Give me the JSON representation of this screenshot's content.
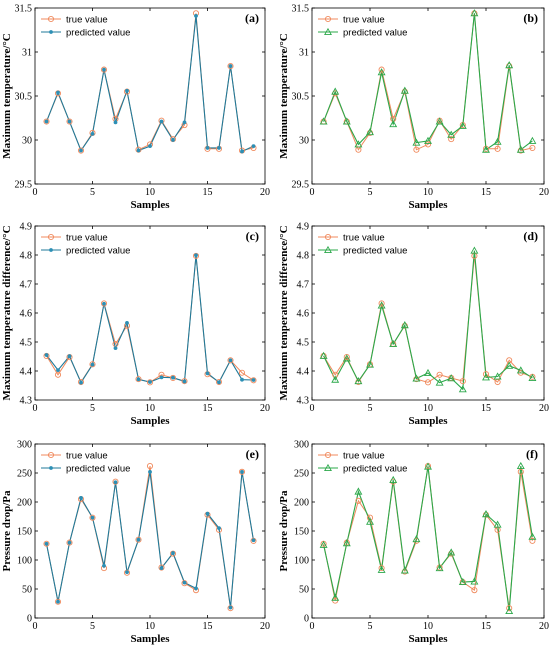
{
  "figure": {
    "colors": {
      "true": "#F08A5D",
      "pred_line": "#1F7A9A",
      "pred_marker": "#2C8FB5",
      "pred_compare": "#2BA84A"
    }
  },
  "chart_data": [
    {
      "type": "line",
      "panel_label": "(a)",
      "xlabel": "Samples",
      "ylabel": "Maximum temperature/°C",
      "xlim": [
        0,
        20
      ],
      "ylim": [
        29.5,
        31.5
      ],
      "xticks": [
        0,
        5,
        10,
        15,
        20
      ],
      "yticks": [
        29.5,
        30,
        30.5,
        31,
        31.5
      ],
      "ytick_labels": [
        "29.5",
        "30",
        "30.5",
        "31",
        "31.5"
      ],
      "x": [
        1,
        2,
        3,
        4,
        5,
        6,
        7,
        8,
        9,
        10,
        11,
        12,
        13,
        14,
        15,
        16,
        17,
        18,
        19
      ],
      "series": [
        {
          "name": "true value",
          "marker": "circle",
          "values": [
            30.21,
            30.53,
            30.21,
            29.88,
            30.08,
            30.8,
            30.24,
            30.55,
            29.89,
            29.95,
            30.22,
            30.01,
            30.17,
            31.44,
            29.9,
            29.9,
            30.84,
            29.88,
            29.91
          ]
        },
        {
          "name": "predicted value",
          "marker": "dot",
          "values": [
            30.21,
            30.54,
            30.21,
            29.88,
            30.07,
            30.8,
            30.2,
            30.56,
            29.88,
            29.93,
            30.21,
            30.0,
            30.2,
            31.41,
            29.91,
            29.91,
            30.84,
            29.87,
            29.93
          ]
        }
      ],
      "legend": "top-left"
    },
    {
      "type": "line",
      "panel_label": "(b)",
      "xlabel": "Samples",
      "ylabel": "Maximum temperature/°C",
      "xlim": [
        0,
        20
      ],
      "ylim": [
        29.5,
        31.5
      ],
      "xticks": [
        0,
        5,
        10,
        15,
        20
      ],
      "yticks": [
        29.5,
        30,
        30.5,
        31,
        31.5
      ],
      "ytick_labels": [
        "29.5",
        "30",
        "30.5",
        "31",
        "31.5"
      ],
      "x": [
        1,
        2,
        3,
        4,
        5,
        6,
        7,
        8,
        9,
        10,
        11,
        12,
        13,
        14,
        15,
        16,
        17,
        18,
        19
      ],
      "series": [
        {
          "name": "true value",
          "marker": "circle",
          "values": [
            30.21,
            30.53,
            30.21,
            29.89,
            30.08,
            30.8,
            30.24,
            30.55,
            29.89,
            29.95,
            30.22,
            30.01,
            30.17,
            31.44,
            29.9,
            29.9,
            30.84,
            29.88,
            29.91
          ]
        },
        {
          "name": "predicted value",
          "marker": "triangle",
          "values": [
            30.21,
            30.55,
            30.21,
            29.95,
            30.09,
            30.77,
            30.18,
            30.56,
            29.97,
            29.99,
            30.21,
            30.06,
            30.16,
            31.44,
            29.89,
            29.98,
            30.85,
            29.89,
            29.99
          ]
        }
      ],
      "legend": "top-left"
    },
    {
      "type": "line",
      "panel_label": "(c)",
      "xlabel": "Samples",
      "ylabel": "Maximum temperature difference/°C",
      "xlim": [
        0,
        20
      ],
      "ylim": [
        4.3,
        4.9
      ],
      "xticks": [
        0,
        5,
        10,
        15,
        20
      ],
      "yticks": [
        4.3,
        4.4,
        4.5,
        4.6,
        4.7,
        4.8,
        4.9
      ],
      "ytick_labels": [
        "4.3",
        "4.4",
        "4.5",
        "4.6",
        "4.7",
        "4.8",
        "4.9"
      ],
      "x": [
        1,
        2,
        3,
        4,
        5,
        6,
        7,
        8,
        9,
        10,
        11,
        12,
        13,
        14,
        15,
        16,
        17,
        18,
        19
      ],
      "series": [
        {
          "name": "true value",
          "marker": "circle",
          "values": [
            4.452,
            4.387,
            4.448,
            4.362,
            4.423,
            4.633,
            4.493,
            4.556,
            4.372,
            4.361,
            4.387,
            4.376,
            4.365,
            4.797,
            4.389,
            4.362,
            4.437,
            4.394,
            4.368
          ]
        },
        {
          "name": "predicted value",
          "marker": "dot",
          "values": [
            4.455,
            4.403,
            4.451,
            4.36,
            4.422,
            4.632,
            4.479,
            4.566,
            4.371,
            4.362,
            4.378,
            4.377,
            4.364,
            4.799,
            4.392,
            4.361,
            4.437,
            4.37,
            4.369
          ]
        }
      ],
      "legend": "top-left"
    },
    {
      "type": "line",
      "panel_label": "(d)",
      "xlabel": "Samples",
      "ylabel": "Maximum temperature difference/°C",
      "xlim": [
        0,
        20
      ],
      "ylim": [
        4.3,
        4.9
      ],
      "xticks": [
        0,
        5,
        10,
        15,
        20
      ],
      "yticks": [
        4.3,
        4.4,
        4.5,
        4.6,
        4.7,
        4.8,
        4.9
      ],
      "ytick_labels": [
        "4.3",
        "4.4",
        "4.5",
        "4.6",
        "4.7",
        "4.8",
        "4.9"
      ],
      "x": [
        1,
        2,
        3,
        4,
        5,
        6,
        7,
        8,
        9,
        10,
        11,
        12,
        13,
        14,
        15,
        16,
        17,
        18,
        19
      ],
      "series": [
        {
          "name": "true value",
          "marker": "circle",
          "values": [
            4.452,
            4.387,
            4.448,
            4.362,
            4.423,
            4.633,
            4.493,
            4.556,
            4.372,
            4.361,
            4.387,
            4.376,
            4.365,
            4.797,
            4.389,
            4.362,
            4.437,
            4.394,
            4.38
          ]
        },
        {
          "name": "predicted value",
          "marker": "triangle",
          "values": [
            4.452,
            4.37,
            4.443,
            4.365,
            4.422,
            4.626,
            4.493,
            4.558,
            4.374,
            4.393,
            4.36,
            4.375,
            4.337,
            4.815,
            4.378,
            4.381,
            4.418,
            4.402,
            4.376
          ]
        }
      ],
      "legend": "top-left"
    },
    {
      "type": "line",
      "panel_label": "(e)",
      "xlabel": "Samples",
      "ylabel": "Pressure drop/Pa",
      "xlim": [
        0,
        20
      ],
      "ylim": [
        0,
        300
      ],
      "xticks": [
        0,
        5,
        10,
        15,
        20
      ],
      "yticks": [
        0,
        50,
        100,
        150,
        200,
        250,
        300
      ],
      "ytick_labels": [
        "0",
        "50",
        "100",
        "150",
        "200",
        "250",
        "300"
      ],
      "x": [
        1,
        2,
        3,
        4,
        5,
        6,
        7,
        8,
        9,
        10,
        11,
        12,
        13,
        14,
        15,
        16,
        17,
        18,
        19
      ],
      "series": [
        {
          "name": "true value",
          "marker": "circle",
          "values": [
            128,
            28,
            130,
            205,
            173,
            86,
            235,
            78,
            135,
            262,
            87,
            111,
            60,
            48,
            178,
            152,
            17,
            252,
            133
          ]
        },
        {
          "name": "predicted value",
          "marker": "dot",
          "values": [
            128,
            28,
            130,
            207,
            173,
            90,
            234,
            79,
            135,
            252,
            86,
            112,
            61,
            51,
            180,
            155,
            18,
            252,
            134
          ]
        }
      ],
      "legend": "top-left"
    },
    {
      "type": "line",
      "panel_label": "(f)",
      "xlabel": "Samples",
      "ylabel": "Pressure drop/Pa",
      "xlim": [
        0,
        20
      ],
      "ylim": [
        0,
        300
      ],
      "xticks": [
        0,
        5,
        10,
        15,
        20
      ],
      "yticks": [
        0,
        50,
        100,
        150,
        200,
        250,
        300
      ],
      "ytick_labels": [
        "0",
        "50",
        "100",
        "150",
        "200",
        "250",
        "300"
      ],
      "x": [
        1,
        2,
        3,
        4,
        5,
        6,
        7,
        8,
        9,
        10,
        11,
        12,
        13,
        14,
        15,
        16,
        17,
        18,
        19
      ],
      "series": [
        {
          "name": "true value",
          "marker": "circle",
          "values": [
            128,
            30,
            130,
            202,
            173,
            86,
            235,
            80,
            133,
            262,
            87,
            111,
            62,
            48,
            178,
            152,
            17,
            252,
            133
          ]
        },
        {
          "name": "predicted value",
          "marker": "triangle",
          "values": [
            126,
            35,
            129,
            218,
            166,
            83,
            238,
            82,
            136,
            261,
            86,
            113,
            62,
            63,
            179,
            161,
            12,
            262,
            140
          ]
        }
      ],
      "legend": "top-left"
    }
  ]
}
